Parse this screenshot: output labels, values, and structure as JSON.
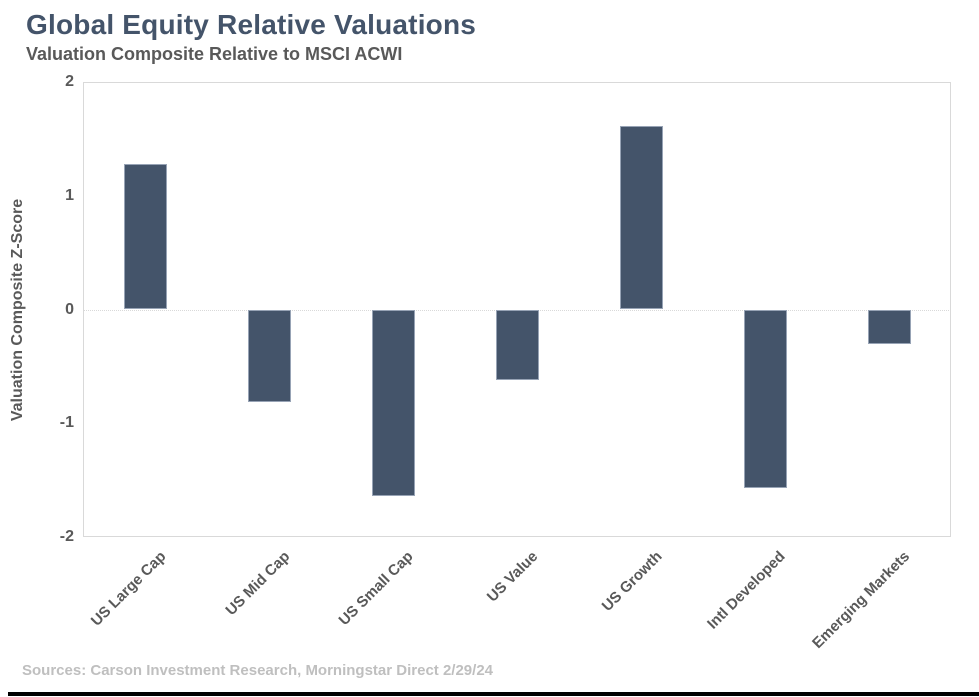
{
  "header": {
    "title": "Global Equity Relative Valuations",
    "subtitle": "Valuation Composite Relative to MSCI ACWI"
  },
  "chart_data": {
    "type": "bar",
    "title": "Global Equity Relative Valuations",
    "subtitle": "Valuation Composite Relative to MSCI ACWI",
    "xlabel": "",
    "ylabel": "Valuation Composite Z-Score",
    "categories": [
      "US Large Cap",
      "US Mid Cap",
      "US Small Cap",
      "US Value",
      "US Growth",
      "Intl Developed",
      "Emerging Markets"
    ],
    "values": [
      1.28,
      -0.81,
      -1.64,
      -0.62,
      1.61,
      -1.57,
      -0.3
    ],
    "ylim": [
      -2,
      2
    ],
    "yticks": [
      2,
      1,
      0,
      -1,
      -2
    ],
    "grid": "zero-line-only",
    "legend_position": "none",
    "bar_color": "#44546A"
  },
  "footer": {
    "source": "Sources: Carson Investment Research, Morningstar Direct 2/29/24"
  },
  "colors": {
    "accent": "#44546A",
    "title_text": "#44546A",
    "subtitle_text": "#595959",
    "axis_text": "#595959",
    "source_text": "#BFBFBF",
    "plot_border": "#D9D9D9"
  }
}
